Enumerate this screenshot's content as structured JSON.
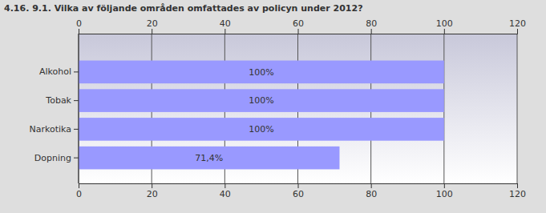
{
  "chart_data": {
    "type": "bar",
    "title": "4.16. 9.1. Vilka av följande områden omfattades av policyn under 2012?",
    "categories": [
      "Alkohol",
      "Tobak",
      "Narkotika",
      "Dopning"
    ],
    "values": [
      100,
      100,
      100,
      71.4
    ],
    "value_labels": [
      "100%",
      "100%",
      "100%",
      "71,4%"
    ],
    "color": "#9999ff",
    "orientation": "horizontal",
    "data_labels": true,
    "grid": true,
    "xlim": [
      0,
      120
    ],
    "xticks": [
      0,
      20,
      40,
      60,
      80,
      100,
      120
    ]
  }
}
